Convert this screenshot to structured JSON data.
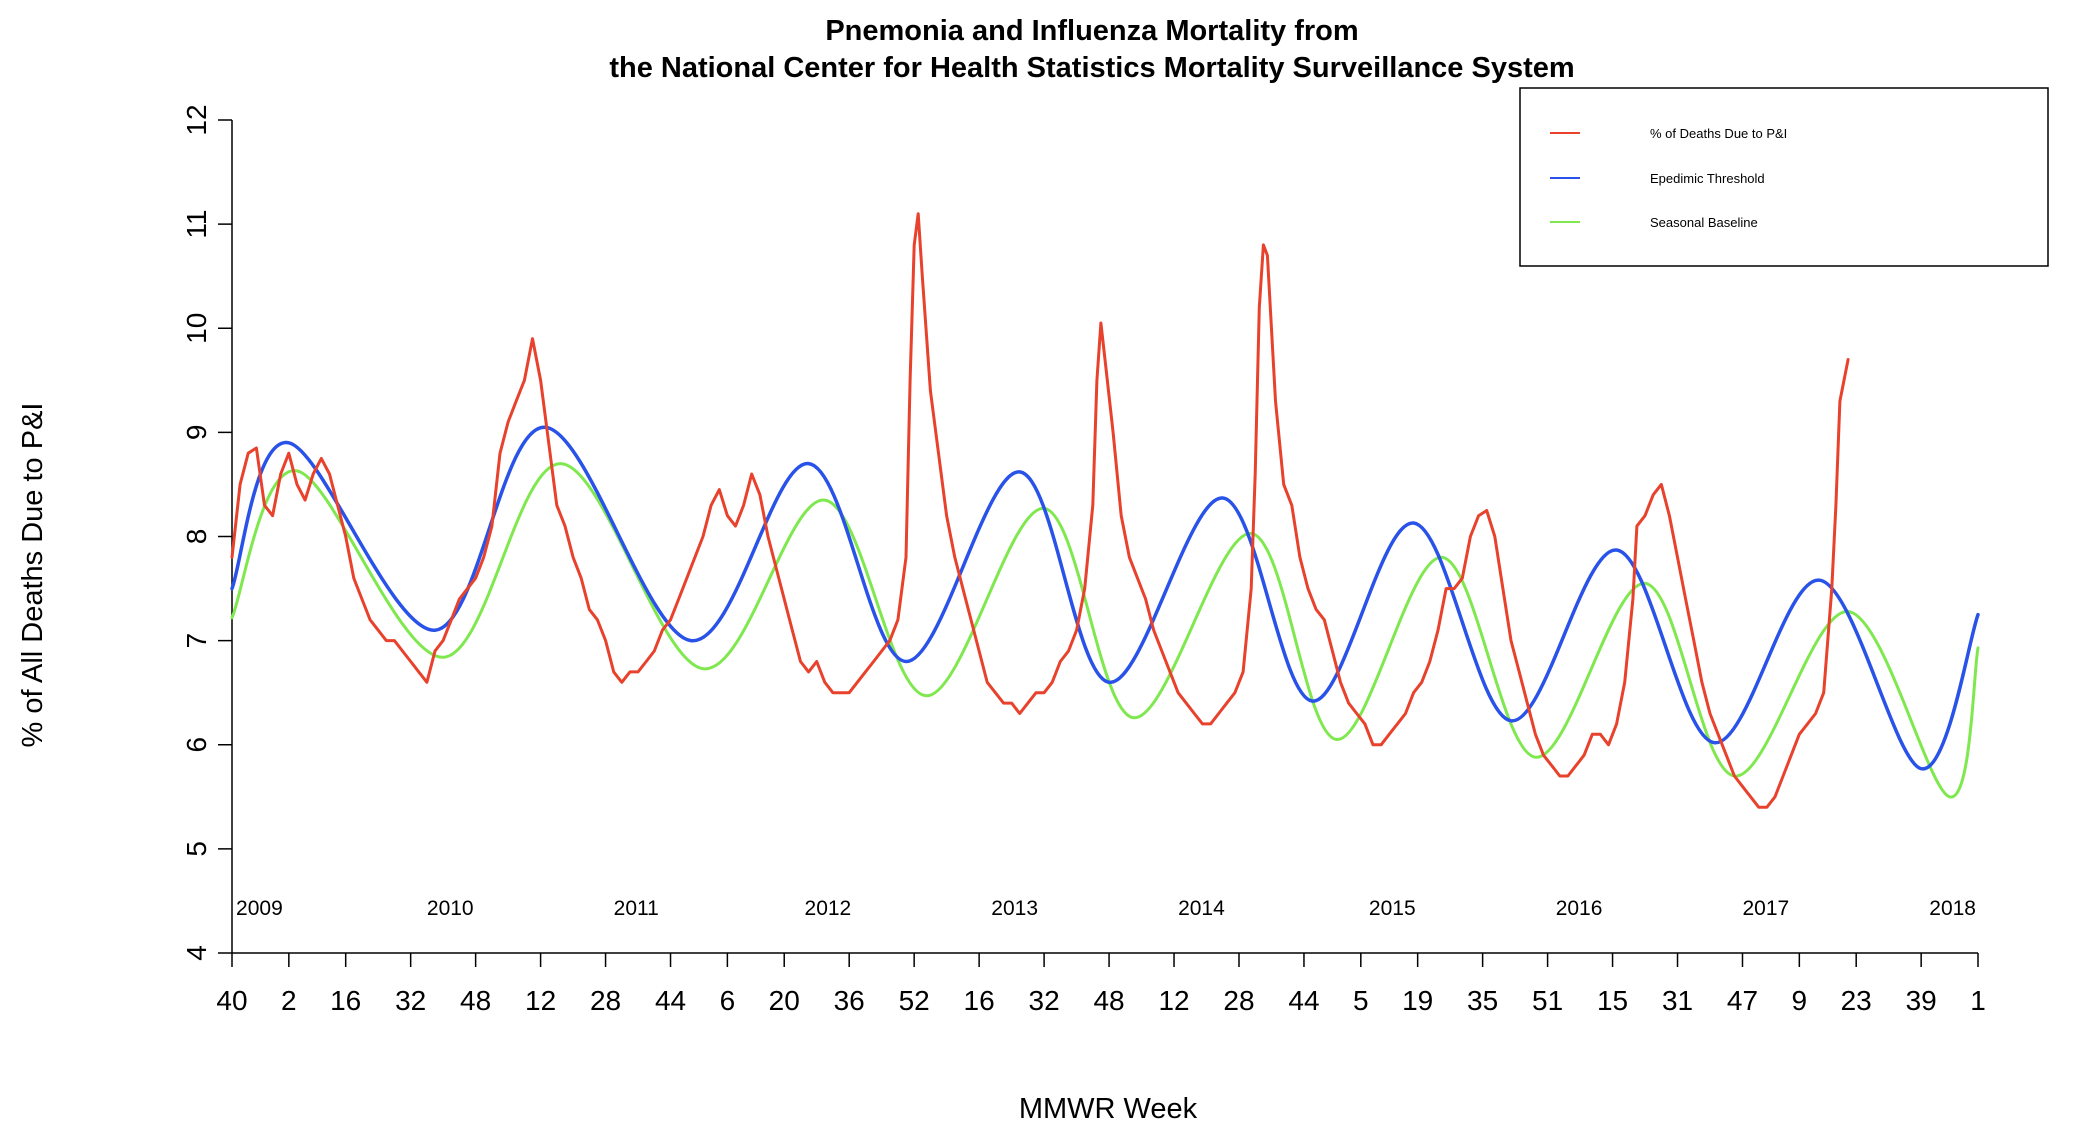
{
  "colors": {
    "pi": "#e8412c",
    "threshold": "#2952e8",
    "baseline": "#7fe84e"
  },
  "chart_data": {
    "type": "line",
    "title": [
      "Pnemonia and Influenza Mortality from",
      "the National Center for Health Statistics Mortality Surveillance System"
    ],
    "xlabel": "MMWR Week",
    "ylabel": "% of All Deaths Due to P&I",
    "ylim": [
      4,
      12
    ],
    "yticks": [
      4,
      5,
      6,
      7,
      8,
      9,
      10,
      11,
      12
    ],
    "xticks": [
      {
        "index": 0,
        "label": "40"
      },
      {
        "index": 14,
        "label": "2"
      },
      {
        "index": 28,
        "label": "16"
      },
      {
        "index": 44,
        "label": "32"
      },
      {
        "index": 60,
        "label": "48"
      },
      {
        "index": 76,
        "label": "12"
      },
      {
        "index": 92,
        "label": "28"
      },
      {
        "index": 108,
        "label": "44"
      },
      {
        "index": 122,
        "label": "6"
      },
      {
        "index": 136,
        "label": "20"
      },
      {
        "index": 152,
        "label": "36"
      },
      {
        "index": 168,
        "label": "52"
      },
      {
        "index": 184,
        "label": "16"
      },
      {
        "index": 200,
        "label": "32"
      },
      {
        "index": 216,
        "label": "48"
      },
      {
        "index": 232,
        "label": "12"
      },
      {
        "index": 248,
        "label": "28"
      },
      {
        "index": 264,
        "label": "44"
      },
      {
        "index": 278,
        "label": "5"
      },
      {
        "index": 292,
        "label": "19"
      },
      {
        "index": 308,
        "label": "35"
      },
      {
        "index": 324,
        "label": "51"
      },
      {
        "index": 340,
        "label": "15"
      },
      {
        "index": 356,
        "label": "31"
      },
      {
        "index": 372,
        "label": "47"
      },
      {
        "index": 386,
        "label": "9"
      },
      {
        "index": 400,
        "label": "23"
      },
      {
        "index": 416,
        "label": "39"
      },
      {
        "index": 430,
        "label": "1"
      }
    ],
    "n_weeks": 431,
    "year_labels": [
      {
        "index": 1,
        "label": "2009"
      },
      {
        "index": 48,
        "label": "2010"
      },
      {
        "index": 94,
        "label": "2011"
      },
      {
        "index": 141,
        "label": "2012"
      },
      {
        "index": 187,
        "label": "2013"
      },
      {
        "index": 233,
        "label": "2014"
      },
      {
        "index": 280,
        "label": "2015"
      },
      {
        "index": 326,
        "label": "2016"
      },
      {
        "index": 372,
        "label": "2017"
      },
      {
        "index": 418,
        "label": "2018"
      }
    ],
    "legend_position": "top-right",
    "series": [
      {
        "name": "% of Deaths Due to P&I",
        "points": [
          [
            0,
            7.8
          ],
          [
            2,
            8.5
          ],
          [
            4,
            8.8
          ],
          [
            6,
            8.85
          ],
          [
            8,
            8.3
          ],
          [
            10,
            8.2
          ],
          [
            12,
            8.6
          ],
          [
            14,
            8.8
          ],
          [
            16,
            8.5
          ],
          [
            18,
            8.35
          ],
          [
            20,
            8.6
          ],
          [
            22,
            8.75
          ],
          [
            24,
            8.6
          ],
          [
            26,
            8.3
          ],
          [
            28,
            8.0
          ],
          [
            30,
            7.6
          ],
          [
            32,
            7.4
          ],
          [
            34,
            7.2
          ],
          [
            36,
            7.1
          ],
          [
            38,
            7.0
          ],
          [
            40,
            7.0
          ],
          [
            42,
            6.9
          ],
          [
            44,
            6.8
          ],
          [
            46,
            6.7
          ],
          [
            48,
            6.6
          ],
          [
            50,
            6.9
          ],
          [
            52,
            7.0
          ],
          [
            54,
            7.2
          ],
          [
            56,
            7.4
          ],
          [
            58,
            7.5
          ],
          [
            60,
            7.6
          ],
          [
            62,
            7.8
          ],
          [
            64,
            8.1
          ],
          [
            66,
            8.8
          ],
          [
            68,
            9.1
          ],
          [
            70,
            9.3
          ],
          [
            72,
            9.5
          ],
          [
            74,
            9.9
          ],
          [
            76,
            9.5
          ],
          [
            78,
            8.9
          ],
          [
            80,
            8.3
          ],
          [
            82,
            8.1
          ],
          [
            84,
            7.8
          ],
          [
            86,
            7.6
          ],
          [
            88,
            7.3
          ],
          [
            90,
            7.2
          ],
          [
            92,
            7.0
          ],
          [
            94,
            6.7
          ],
          [
            96,
            6.6
          ],
          [
            98,
            6.7
          ],
          [
            100,
            6.7
          ],
          [
            102,
            6.8
          ],
          [
            104,
            6.9
          ],
          [
            106,
            7.1
          ],
          [
            108,
            7.2
          ],
          [
            110,
            7.4
          ],
          [
            112,
            7.6
          ],
          [
            114,
            7.8
          ],
          [
            116,
            8.0
          ],
          [
            118,
            8.3
          ],
          [
            120,
            8.45
          ],
          [
            122,
            8.2
          ],
          [
            124,
            8.1
          ],
          [
            126,
            8.3
          ],
          [
            128,
            8.6
          ],
          [
            130,
            8.4
          ],
          [
            132,
            8.0
          ],
          [
            134,
            7.7
          ],
          [
            136,
            7.4
          ],
          [
            138,
            7.1
          ],
          [
            140,
            6.8
          ],
          [
            142,
            6.7
          ],
          [
            144,
            6.8
          ],
          [
            146,
            6.6
          ],
          [
            148,
            6.5
          ],
          [
            150,
            6.5
          ],
          [
            152,
            6.5
          ],
          [
            154,
            6.6
          ],
          [
            156,
            6.7
          ],
          [
            158,
            6.8
          ],
          [
            160,
            6.9
          ],
          [
            162,
            7.0
          ],
          [
            164,
            7.2
          ],
          [
            166,
            7.8
          ],
          [
            167,
            9.5
          ],
          [
            168,
            10.8
          ],
          [
            169,
            11.1
          ],
          [
            170,
            10.5
          ],
          [
            172,
            9.4
          ],
          [
            174,
            8.8
          ],
          [
            176,
            8.2
          ],
          [
            178,
            7.8
          ],
          [
            180,
            7.5
          ],
          [
            182,
            7.2
          ],
          [
            184,
            6.9
          ],
          [
            186,
            6.6
          ],
          [
            188,
            6.5
          ],
          [
            190,
            6.4
          ],
          [
            192,
            6.4
          ],
          [
            194,
            6.3
          ],
          [
            196,
            6.4
          ],
          [
            198,
            6.5
          ],
          [
            200,
            6.5
          ],
          [
            202,
            6.6
          ],
          [
            204,
            6.8
          ],
          [
            206,
            6.9
          ],
          [
            208,
            7.1
          ],
          [
            210,
            7.5
          ],
          [
            212,
            8.3
          ],
          [
            213,
            9.5
          ],
          [
            214,
            10.05
          ],
          [
            215,
            9.7
          ],
          [
            217,
            9.0
          ],
          [
            219,
            8.2
          ],
          [
            221,
            7.8
          ],
          [
            223,
            7.6
          ],
          [
            225,
            7.4
          ],
          [
            227,
            7.1
          ],
          [
            229,
            6.9
          ],
          [
            231,
            6.7
          ],
          [
            233,
            6.5
          ],
          [
            235,
            6.4
          ],
          [
            237,
            6.3
          ],
          [
            239,
            6.2
          ],
          [
            241,
            6.2
          ],
          [
            243,
            6.3
          ],
          [
            245,
            6.4
          ],
          [
            247,
            6.5
          ],
          [
            249,
            6.7
          ],
          [
            251,
            7.5
          ],
          [
            252,
            8.6
          ],
          [
            253,
            10.2
          ],
          [
            254,
            10.8
          ],
          [
            255,
            10.7
          ],
          [
            257,
            9.3
          ],
          [
            259,
            8.5
          ],
          [
            261,
            8.3
          ],
          [
            263,
            7.8
          ],
          [
            265,
            7.5
          ],
          [
            267,
            7.3
          ],
          [
            269,
            7.2
          ],
          [
            271,
            6.9
          ],
          [
            273,
            6.6
          ],
          [
            275,
            6.4
          ],
          [
            277,
            6.3
          ],
          [
            279,
            6.2
          ],
          [
            281,
            6.0
          ],
          [
            283,
            6.0
          ],
          [
            285,
            6.1
          ],
          [
            287,
            6.2
          ],
          [
            289,
            6.3
          ],
          [
            291,
            6.5
          ],
          [
            293,
            6.6
          ],
          [
            295,
            6.8
          ],
          [
            297,
            7.1
          ],
          [
            299,
            7.5
          ],
          [
            301,
            7.5
          ],
          [
            303,
            7.6
          ],
          [
            305,
            8.0
          ],
          [
            307,
            8.2
          ],
          [
            309,
            8.25
          ],
          [
            311,
            8.0
          ],
          [
            313,
            7.5
          ],
          [
            315,
            7.0
          ],
          [
            317,
            6.7
          ],
          [
            319,
            6.4
          ],
          [
            321,
            6.1
          ],
          [
            323,
            5.9
          ],
          [
            325,
            5.8
          ],
          [
            327,
            5.7
          ],
          [
            329,
            5.7
          ],
          [
            331,
            5.8
          ],
          [
            333,
            5.9
          ],
          [
            335,
            6.1
          ],
          [
            337,
            6.1
          ],
          [
            339,
            6.0
          ],
          [
            341,
            6.2
          ],
          [
            343,
            6.6
          ],
          [
            345,
            7.4
          ],
          [
            346,
            8.1
          ],
          [
            348,
            8.2
          ],
          [
            350,
            8.4
          ],
          [
            352,
            8.5
          ],
          [
            354,
            8.2
          ],
          [
            356,
            7.8
          ],
          [
            358,
            7.4
          ],
          [
            360,
            7.0
          ],
          [
            362,
            6.6
          ],
          [
            364,
            6.3
          ],
          [
            366,
            6.1
          ],
          [
            368,
            5.9
          ],
          [
            370,
            5.7
          ],
          [
            372,
            5.6
          ],
          [
            374,
            5.5
          ],
          [
            376,
            5.4
          ],
          [
            378,
            5.4
          ],
          [
            380,
            5.5
          ],
          [
            382,
            5.7
          ],
          [
            384,
            5.9
          ],
          [
            386,
            6.1
          ],
          [
            388,
            6.2
          ],
          [
            390,
            6.3
          ],
          [
            392,
            6.5
          ],
          [
            394,
            7.5
          ],
          [
            395,
            8.3
          ],
          [
            396,
            9.3
          ],
          [
            398,
            9.7
          ]
        ]
      },
      {
        "name": "Epedimic Threshold",
        "points": [
          [
            0,
            7.5
          ],
          [
            14,
            8.9
          ],
          [
            50,
            7.1
          ],
          [
            77,
            9.05
          ],
          [
            113,
            7.0
          ],
          [
            142,
            8.7
          ],
          [
            166,
            6.8
          ],
          [
            194,
            8.62
          ],
          [
            216,
            6.6
          ],
          [
            244,
            8.37
          ],
          [
            266,
            6.42
          ],
          [
            291,
            8.13
          ],
          [
            315,
            6.23
          ],
          [
            341,
            7.87
          ],
          [
            365,
            6.02
          ],
          [
            391,
            7.58
          ],
          [
            416,
            5.77
          ],
          [
            430,
            7.25
          ]
        ]
      },
      {
        "name": "Seasonal Baseline",
        "points": [
          [
            0,
            7.22
          ],
          [
            16,
            8.63
          ],
          [
            52,
            6.84
          ],
          [
            81,
            8.7
          ],
          [
            116,
            6.73
          ],
          [
            146,
            8.35
          ],
          [
            171,
            6.47
          ],
          [
            200,
            8.27
          ],
          [
            222,
            6.26
          ],
          [
            251,
            8.03
          ],
          [
            272,
            6.05
          ],
          [
            298,
            7.8
          ],
          [
            321,
            5.88
          ],
          [
            348,
            7.55
          ],
          [
            370,
            5.7
          ],
          [
            398,
            7.28
          ],
          [
            423,
            5.5
          ],
          [
            430,
            6.93
          ]
        ]
      }
    ]
  }
}
